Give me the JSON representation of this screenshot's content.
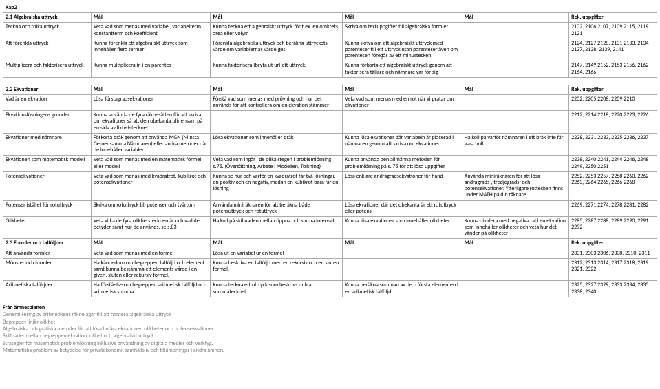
{
  "kap2": "Kap2",
  "section1": {
    "title": "2.1 Algebraiska uttryck",
    "cols": [
      "Mål",
      "Mål",
      "Mål",
      "Mål",
      "Rek. uppgifter"
    ],
    "rows": [
      {
        "label": "Teckna och tolka uttryck",
        "c2": "Veta vad som menas med variabel, variabelterm, konstantterm och koefficient",
        "c3": "Kunna teckna ett algebraiskt uttryck för t.ex. en omkrets, area eller volym",
        "c4": "Skriva om textuppgifter till algebraiska formler",
        "c5": "",
        "c6": "2102, 2106 2107, 2109 2115, 2119 2121"
      },
      {
        "label": "Att förenkla uttryck",
        "c2": "Kunna förenkla ett algebraiskt uttryck som innehåller flera termer",
        "c3": "Förenkla algebraiska uttryck och beräkna uttryckets värde om variablernas värde.ges.",
        "c4": "Kunna skriva om ett algebraiskt uttryck med parenteser till ett uttryck utan parenteser även om parentesen föregås av ett minustecken",
        "c5": "",
        "c6": "2124, 2127 2128, 2131 2133, 2134 2137, 2138, 2139, 2141"
      },
      {
        "label": "Multiplicera och faktorisera uttryck",
        "c2": "Kunna multiplicera in i en parentes",
        "c3": "Kunna faktorisera (bryta ut ur) ett uttryck.",
        "c4": "Kunna förkorta ett algebraiskt uttryck genom att faktorisera täljare och nämnare var för sig",
        "c5": "",
        "c6": "2147, 2149 2152, 2153 2156, 2162 2164, 2166"
      }
    ]
  },
  "section2": {
    "title": "2.2 Ekvationer",
    "cols": [
      "Mål",
      "Mål",
      "Mål",
      "Mål",
      "Rek. uppgifter"
    ],
    "rows": [
      {
        "label": "Vad är en ekvation",
        "c2": "Lösa förstagradsekvationer",
        "c3": "Förstå vad som menas med prövning  och hur det används för att kontrollera om en ekvation stämmer",
        "c4": "Veta vad som menas med en rot  när vi pratar om ekvationer",
        "c5": "",
        "c6": "2202, 2205 2208, 2209 2210"
      },
      {
        "label": "Ekvationslösningens grunder",
        "c2": "Kunna använda de fyra räknesätten för att skriva om ekvationer så att den obekanta blir ensam på en sida av likhetstecknet",
        "c3": "",
        "c4": "",
        "c5": "",
        "c6": "2212, 2214 2218, 2220 2223, 2226"
      },
      {
        "label": "Ekvationer med nämnare",
        "c2": "Förkorta bråk genom att använda MGN (Minsta Gemensamma Nämnaren) eller andra metoder när de innehåller variabler.",
        "c3": "Lösa ekvationer som innehåller bråk",
        "c4": "Kunna lösa ekvationer där variabeln är placerad i nämnaren genom att skriva om ekvationen",
        "c5": "Ha koll på varför nämnaren i ett bråk inte får vara noll",
        "c6": "2228, 2231 2233, 2235 2236, 2237"
      },
      {
        "label": "Ekvationen som matematisk modell",
        "c2": "Veta vad som menas med en matematisk formel eller modell",
        "c3": "Veta vad som ingår i de olika stegen i problemlösning s.75. (Översättning, Arbete i Modellen, Tolkning)",
        "c4": "Kunna använda den allmänna metoden för problemlösning på s. 75 för att lösa uppgifter",
        "c5": "",
        "c6": "2238, 2240 2241, 2244 2246, 2248 2249, 2250 2251"
      },
      {
        "label": "Potensekvationer",
        "c2": "Veta vad som menas med kvadratrot, kubikrot och potensekvationer",
        "c3": "Kunna se hur och varför en kvadratrot får två lösningar, en positiv och en negativ, medan en kubikrot bara får en lösning",
        "c4": "Lösa enklare andragradsekvationer för hand",
        "c5": "Använda miniräknaren för att lösa andragrads-, tredjegrads- och potensekvationer. Ytterligare rottecken finns under MATH på din räknare",
        "c6": "2252, 2253 2257, 2258 2260, 2262 2263, 2264 2265, 2266 2268"
      },
      {
        "label": "Potenser istället för rotuttryck",
        "c2": "Skriva om rotuttryck till potenser och tvärtom",
        "c3": "Använda miniräknaren för att beräkna både potensuttryck och rotuttryck",
        "c4": "Lösa ekvationer där det obekanta är ett rotuttryck eller potens",
        "c5": "",
        "c6": "2269, 2271 2274, 2278 2281, 2282"
      },
      {
        "label": "Olikheter",
        "c2": "Veta vilka de fyra olikhetstecknen är och vad de betyder samt hur de används, se s.83",
        "c3": "Ha koll på skillnaden mellan öppna och slutna intervall",
        "c4": "Kunna lösa ekvationer som innehåller olikheter",
        "c5": "Kunna dividera med negativa tal i en ekvation som innehåller olikheter och veta hur det vänder på olikheter",
        "c6": "2285, 2287 2288, 2289 2290, 2291 2292"
      }
    ]
  },
  "section3": {
    "title": "2.3 Formler och talföljder",
    "cols": [
      "Mål",
      "Mål",
      "Mål",
      "Mål",
      "Rek. uppgifter"
    ],
    "rows": [
      {
        "label": "Att använda formler",
        "c2": "Veta vad som menas med en formel",
        "c3": "Lösa ut en variabel ur en formel",
        "c4": "",
        "c5": "",
        "c6": "2301, 2303 2306, 2308, 2310, 2311"
      },
      {
        "label": "Mönster och formler",
        "c2": "Ha kännedom om begreppen talföljd och element samt kunna bestämma ett elements värde i en given, sluten eller rekursiv formel.",
        "c3": "Kunna beskriva en talföljd med en rekursiv och en sluten formel.",
        "c4": "",
        "c5": "",
        "c6": "2312, 2313 2314, 2317 2318, 2319 2321, 2322"
      },
      {
        "label": "Aritmetiska talföljder",
        "c2": "Ha förståelse om begreppen aritmetisk talföljd och aritmetisk summa",
        "c3": "Kunna teckna ett uttryck som beskrivs m.h.a. summatecknet",
        "c4": "Kunna beräkna summan av de n första elementen i en aritmetisk talföljd",
        "c5": "",
        "c6": "2325, 2327 2329, 2333 2334, 2335 2338, 2340"
      }
    ]
  },
  "footnotes": {
    "title": "Från ämnesplanen",
    "lines": [
      "Generalisering av aritmetikens räknelagar till att hantera algebraiska uttryck",
      "Begreppet linjär olikhet",
      "Algebraiska och grafiska metoder för att lösa linjära ekvationer, olikheter och potensekvationer.",
      "Skillnader mellan begreppen ekvation, olihet och algebraiskt uttryck",
      "Strategier för matematisk problemlösning inklusive användning av digitala medier och verktyg.",
      "Matematiska problem av betydelse för privatekonomi, samhällsliv och tillämpningar i andra ämnen."
    ]
  }
}
